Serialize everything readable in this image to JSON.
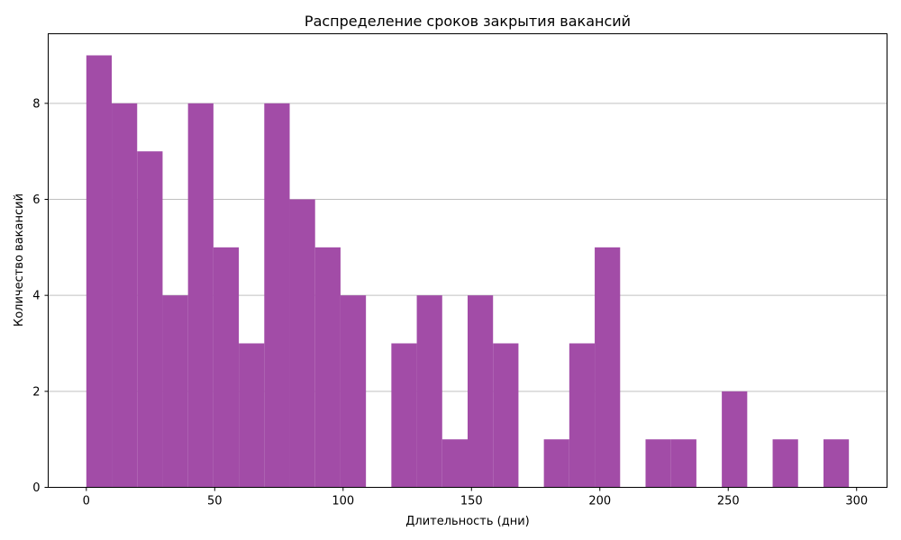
{
  "chart_data": {
    "type": "bar",
    "title": "Распределение сроков закрытия вакансий",
    "xlabel": "Длительность (дни)",
    "ylabel": "Количество вакансий",
    "bin_edges": [
      0,
      9.9,
      19.8,
      29.7,
      39.6,
      49.5,
      59.4,
      69.3,
      79.2,
      89.1,
      99.0,
      108.9,
      118.8,
      128.7,
      138.6,
      148.5,
      158.4,
      168.3,
      178.2,
      188.1,
      198.0,
      207.9,
      217.8,
      227.7,
      237.6,
      247.5,
      257.4,
      267.3,
      277.2,
      287.1,
      297.0
    ],
    "values": [
      9,
      8,
      7,
      4,
      8,
      5,
      3,
      8,
      6,
      5,
      4,
      0,
      3,
      4,
      1,
      4,
      3,
      0,
      1,
      3,
      5,
      0,
      1,
      1,
      0,
      2,
      0,
      1,
      0,
      1
    ],
    "xlim": [
      -14.85,
      311.85
    ],
    "ylim": [
      0,
      9.45
    ],
    "xticks": [
      0,
      50,
      100,
      150,
      200,
      250,
      300
    ],
    "yticks": [
      0,
      2,
      4,
      6,
      8
    ],
    "grid": "y-axis",
    "legend": "none",
    "bar_color": "#a24ca7",
    "grid_color": "#c0c0c0"
  }
}
